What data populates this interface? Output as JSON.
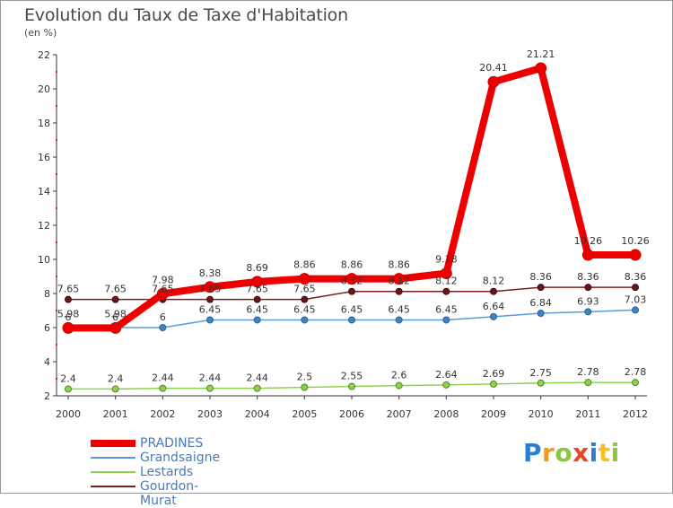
{
  "title": "Evolution du Taux de Taxe d'Habitation",
  "subtitle": "(en %)",
  "colors": {
    "PRADINES": "#ee0000",
    "Grandsaigne": "#5b9bd5",
    "Lestards": "#8fd14f",
    "Gourdon-Murat": "#7a2020",
    "axis": "#333333",
    "grid_dot": "#c00000",
    "label": "#333333"
  },
  "logo": {
    "text": "Proxiti",
    "letters": [
      {
        "ch": "P",
        "color": "#2a7fd4"
      },
      {
        "ch": "r",
        "color": "#f29a1f"
      },
      {
        "ch": "o",
        "color": "#8cc63f"
      },
      {
        "ch": "x",
        "color": "#e8462a"
      },
      {
        "ch": "i",
        "color": "#2a7fd4"
      },
      {
        "ch": "t",
        "color": "#f2c31f"
      },
      {
        "ch": "i",
        "color": "#8cc63f"
      }
    ]
  },
  "chart_data": {
    "type": "line",
    "title": "Evolution du Taux de Taxe d'Habitation",
    "subtitle": "(en %)",
    "x": [
      "2000",
      "2001",
      "2002",
      "2003",
      "2004",
      "2005",
      "2006",
      "2007",
      "2008",
      "2009",
      "2010",
      "2011",
      "2012"
    ],
    "ylim": [
      2,
      22
    ],
    "yticks": [
      "2",
      "4",
      "6",
      "8",
      "10",
      "12",
      "14",
      "16",
      "18",
      "20",
      "22"
    ],
    "legend_position": "bottom-left",
    "grid": false,
    "series": [
      {
        "name": "PRADINES",
        "key": "PRADINES",
        "values": [
          5.98,
          5.98,
          7.98,
          8.38,
          8.69,
          8.86,
          8.86,
          8.86,
          9.18,
          20.41,
          21.21,
          10.26,
          10.26
        ],
        "labels": [
          "5.98",
          "5.98",
          "7.98",
          "8.38",
          "8.69",
          "8.86",
          "8.86",
          "8.86",
          "9.18",
          "20.41",
          "21.21",
          "10.26",
          "10.26"
        ]
      },
      {
        "name": "Grandsaigne",
        "key": "Grandsaigne",
        "values": [
          6,
          6,
          6,
          6.45,
          6.45,
          6.45,
          6.45,
          6.45,
          6.45,
          6.64,
          6.84,
          6.93,
          7.03
        ],
        "labels": [
          "6",
          "6",
          "6",
          "6.45",
          "6.45",
          "6.45",
          "6.45",
          "6.45",
          "6.45",
          "6.64",
          "6.84",
          "6.93",
          "7.03"
        ]
      },
      {
        "name": "Lestards",
        "key": "Lestards",
        "values": [
          2.4,
          2.4,
          2.44,
          2.44,
          2.44,
          2.5,
          2.55,
          2.6,
          2.64,
          2.69,
          2.75,
          2.78,
          2.78
        ],
        "labels": [
          "2.4",
          "2.4",
          "2.44",
          "2.44",
          "2.44",
          "2.5",
          "2.55",
          "2.6",
          "2.64",
          "2.69",
          "2.75",
          "2.78",
          "2.78"
        ]
      },
      {
        "name": "Gourdon-Murat",
        "key": "Gourdon-Murat",
        "values": [
          7.65,
          7.65,
          7.65,
          7.65,
          7.65,
          7.65,
          8.12,
          8.12,
          8.12,
          8.12,
          8.36,
          8.36,
          8.36
        ],
        "labels": [
          "7.65",
          "7.65",
          "7.65",
          "7.65",
          "7.65",
          "7.65",
          "8.12",
          "8.12",
          "8.12",
          "8.12",
          "8.36",
          "8.36",
          "8.36"
        ]
      }
    ]
  }
}
